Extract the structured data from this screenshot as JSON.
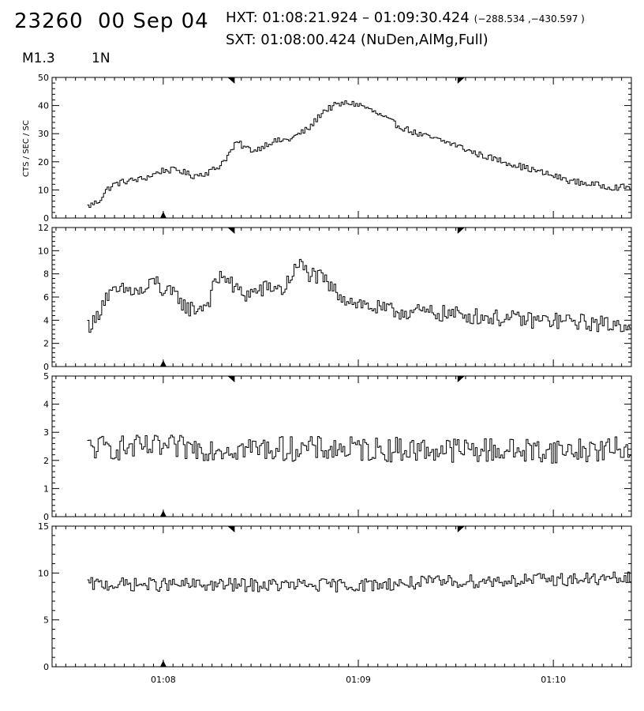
{
  "header": {
    "flare_id": "23260",
    "date": "00 Sep 04",
    "hxt_label": "HXT:",
    "hxt_range": "01:08:21.924 – 01:09:30.424",
    "hxt_coords": "(−288.534 ,−430.597 )",
    "sxt_label": "SXT:",
    "sxt_time": "01:08:00.424",
    "sxt_info": "(NuDen,AlMg,Full)",
    "goes_class": "M1.3",
    "location": "1N"
  },
  "chart_data": {
    "type": "line",
    "step": true,
    "ylabel": "CTS / SEC / SC",
    "x_unit": "minutes after 01:08",
    "xlim": [
      -0.57,
      2.4
    ],
    "x_ticks": [
      0,
      1,
      2
    ],
    "x_tick_labels": [
      "01:08",
      "01:09",
      "01:10"
    ],
    "data_start": -0.39,
    "data_end": 2.4,
    "markers": {
      "sxt_bottom": [
        0
      ],
      "hxt_top": [
        0.35,
        1.525
      ]
    },
    "panels": [
      {
        "ylim": [
          0,
          50
        ],
        "y_ticks": [
          0,
          10,
          20,
          30,
          40,
          50
        ],
        "noise": 0.7,
        "knots": [
          [
            -0.39,
            4
          ],
          [
            -0.33,
            6
          ],
          [
            -0.29,
            10
          ],
          [
            -0.25,
            12
          ],
          [
            -0.2,
            13
          ],
          [
            -0.1,
            14
          ],
          [
            0,
            17
          ],
          [
            0.08,
            17
          ],
          [
            0.15,
            15
          ],
          [
            0.22,
            16
          ],
          [
            0.28,
            18
          ],
          [
            0.33,
            22
          ],
          [
            0.38,
            27
          ],
          [
            0.42,
            25
          ],
          [
            0.47,
            24
          ],
          [
            0.55,
            27
          ],
          [
            0.65,
            28
          ],
          [
            0.75,
            32
          ],
          [
            0.82,
            38
          ],
          [
            0.88,
            40
          ],
          [
            0.95,
            41
          ],
          [
            1.02,
            40
          ],
          [
            1.1,
            37
          ],
          [
            1.2,
            33
          ],
          [
            1.3,
            30
          ],
          [
            1.4,
            28
          ],
          [
            1.5,
            26
          ],
          [
            1.6,
            23
          ],
          [
            1.7,
            21
          ],
          [
            1.8,
            19
          ],
          [
            1.9,
            17
          ],
          [
            2.0,
            15
          ],
          [
            2.1,
            13
          ],
          [
            2.2,
            12
          ],
          [
            2.3,
            11
          ],
          [
            2.4,
            11
          ]
        ]
      },
      {
        "ylim": [
          0,
          12
        ],
        "y_ticks": [
          0,
          2,
          4,
          6,
          8,
          10,
          12
        ],
        "noise": 0.45,
        "knots": [
          [
            -0.39,
            3.6
          ],
          [
            -0.35,
            3.8
          ],
          [
            -0.3,
            6
          ],
          [
            -0.2,
            6.6
          ],
          [
            -0.1,
            6.4
          ],
          [
            -0.04,
            7.5
          ],
          [
            0,
            6.5
          ],
          [
            0.08,
            6
          ],
          [
            0.12,
            5
          ],
          [
            0.18,
            5
          ],
          [
            0.23,
            5.5
          ],
          [
            0.27,
            7.3
          ],
          [
            0.31,
            8
          ],
          [
            0.36,
            6.8
          ],
          [
            0.42,
            6.2
          ],
          [
            0.5,
            6.6
          ],
          [
            0.56,
            6.9
          ],
          [
            0.62,
            6.6
          ],
          [
            0.66,
            8
          ],
          [
            0.7,
            8.8
          ],
          [
            0.75,
            8
          ],
          [
            0.82,
            7.5
          ],
          [
            0.88,
            6.5
          ],
          [
            0.95,
            5.8
          ],
          [
            1.05,
            5.2
          ],
          [
            1.15,
            4.8
          ],
          [
            1.3,
            4.7
          ],
          [
            1.5,
            4.5
          ],
          [
            1.7,
            4.2
          ],
          [
            1.9,
            4.0
          ],
          [
            2.1,
            3.9
          ],
          [
            2.3,
            3.6
          ],
          [
            2.4,
            3.7
          ]
        ]
      },
      {
        "ylim": [
          0,
          5
        ],
        "y_ticks": [
          0,
          1,
          2,
          3,
          4,
          5
        ],
        "noise": 0.28,
        "knots": [
          [
            -0.39,
            2.45
          ],
          [
            0,
            2.45
          ],
          [
            1.0,
            2.4
          ],
          [
            2.0,
            2.35
          ],
          [
            2.4,
            2.4
          ]
        ]
      },
      {
        "ylim": [
          0,
          15
        ],
        "y_ticks": [
          0,
          5,
          10,
          15
        ],
        "noise": 0.45,
        "knots": [
          [
            -0.39,
            8.8
          ],
          [
            0.5,
            8.7
          ],
          [
            1.0,
            8.7
          ],
          [
            1.5,
            9.1
          ],
          [
            2.0,
            9.3
          ],
          [
            2.4,
            9.4
          ]
        ]
      }
    ]
  }
}
